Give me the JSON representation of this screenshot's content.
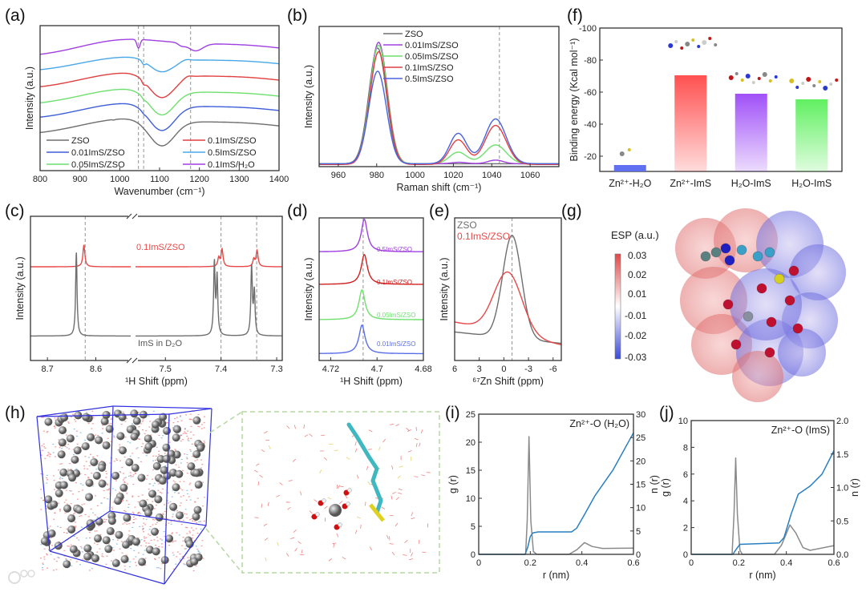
{
  "panel_labels": {
    "a": "(a)",
    "b": "(b)",
    "c": "(c)",
    "d": "(d)",
    "e": "(e)",
    "f": "(f)",
    "g": "(g)",
    "h": "(h)",
    "i": "(i)",
    "j": "(j)"
  },
  "watermark": "大数跨境",
  "esp": {
    "title": "ESP (a.u.)",
    "ticks": [
      "0.03",
      "0.02",
      "0.01",
      "-0.01",
      "-0.02",
      "-0.03"
    ],
    "colors": [
      "#e04848",
      "#ffffff",
      "#3a4ad8"
    ]
  },
  "chart_data": [
    {
      "id": "a",
      "type": "line",
      "xlabel": "Wavenumber (cm⁻¹)",
      "ylabel": "Intensity (a.u.)",
      "xlim": [
        800,
        1400
      ],
      "ylim": [
        -0.43,
        5.43
      ],
      "xticks": [
        800,
        900,
        1000,
        1100,
        1200,
        1300,
        1400
      ],
      "vlines": [
        1047,
        1060,
        1178
      ],
      "grid": false,
      "legend": "bottom",
      "series": [
        {
          "name": "ZSO",
          "color": "#6e6e6e",
          "baseline": 1.0,
          "peaks": [
            [
              1000,
              0.55,
              110,
              "g"
            ],
            [
              1280,
              0.5,
              160,
              "g"
            ],
            [
              1105,
              -1.05,
              32,
              "g"
            ],
            [
              985,
              -0.02,
              3,
              "g"
            ]
          ]
        },
        {
          "name": "0.01ImS/ZSO",
          "color": "#3f5fd8",
          "baseline": 1.62,
          "peaks": [
            [
              1000,
              0.55,
              110,
              "g"
            ],
            [
              1280,
              0.5,
              160,
              "g"
            ],
            [
              1105,
              -1.05,
              32,
              "g"
            ],
            [
              1060,
              -0.04,
              4,
              "g"
            ]
          ]
        },
        {
          "name": "0.05ImS/ZSO",
          "color": "#6fe06f",
          "baseline": 2.2,
          "peaks": [
            [
              1000,
              0.55,
              110,
              "g"
            ],
            [
              1280,
              0.5,
              160,
              "g"
            ],
            [
              1105,
              -1.0,
              32,
              "g"
            ],
            [
              1060,
              -0.06,
              4,
              "g"
            ]
          ]
        },
        {
          "name": "0.1ImS/ZSO",
          "color": "#e04040",
          "baseline": 2.85,
          "peaks": [
            [
              1000,
              0.55,
              110,
              "g"
            ],
            [
              1280,
              0.5,
              160,
              "g"
            ],
            [
              1105,
              -0.95,
              32,
              "g"
            ],
            [
              1060,
              -0.12,
              4,
              "g"
            ],
            [
              1170,
              0.08,
              10,
              "g"
            ]
          ]
        },
        {
          "name": "0.5ImS/ZSO",
          "color": "#4aa8e8",
          "baseline": 3.55,
          "peaks": [
            [
              1000,
              0.5,
              110,
              "g"
            ],
            [
              1280,
              0.45,
              160,
              "g"
            ],
            [
              1105,
              -0.55,
              30,
              "g"
            ],
            [
              1060,
              -0.12,
              4,
              "g"
            ],
            [
              1165,
              0.06,
              10,
              "g"
            ]
          ]
        },
        {
          "name": "0.1ImS/H₂O",
          "color": "#a040e0",
          "baseline": 4.15,
          "peaks": [
            [
              1000,
              0.6,
              110,
              "g"
            ],
            [
              1280,
              0.5,
              160,
              "g"
            ],
            [
              1047,
              -0.35,
              4,
              "g"
            ],
            [
              1190,
              -0.3,
              18,
              "g"
            ],
            [
              1155,
              -0.1,
              8,
              "g"
            ]
          ]
        }
      ]
    },
    {
      "id": "b",
      "type": "line",
      "xlabel": "Raman shift (cm⁻¹)",
      "ylabel": "Intensity (a.u.)",
      "xlim": [
        950,
        1075
      ],
      "ylim": [
        0,
        0.97
      ],
      "xticks": [
        960,
        980,
        1000,
        1020,
        1040,
        1060
      ],
      "vlines": [
        1044
      ],
      "grid": false,
      "legend": "top-center",
      "series": [
        {
          "name": "ZSO",
          "color": "#6e6e6e",
          "baseline": 0.02,
          "peaks": [
            [
              980.5,
              0.8,
              4.6,
              "g"
            ]
          ]
        },
        {
          "name": "0.01ImS/ZSO",
          "color": "#a040e0",
          "baseline": 0.02,
          "peaks": [
            [
              981,
              0.84,
              4.6,
              "g"
            ],
            [
              1023,
              0.01,
              4,
              "g"
            ],
            [
              1042,
              0.025,
              4,
              "g"
            ]
          ]
        },
        {
          "name": "0.05ImS/ZSO",
          "color": "#6fe06f",
          "baseline": 0.02,
          "peaks": [
            [
              981,
              0.82,
              4.6,
              "g"
            ],
            [
              1022.5,
              0.08,
              4.5,
              "g"
            ],
            [
              1042,
              0.13,
              5.5,
              "g"
            ]
          ]
        },
        {
          "name": "0.1ImS/ZSO",
          "color": "#e04040",
          "baseline": 0.015,
          "peaks": [
            [
              981,
              0.78,
              4.6,
              "g"
            ],
            [
              1022.5,
              0.17,
              4.5,
              "g"
            ],
            [
              1042,
              0.27,
              5.5,
              "g"
            ]
          ]
        },
        {
          "name": "0.5ImS/ZSO",
          "color": "#4a64e0",
          "baseline": 0.02,
          "peaks": [
            [
              980.5,
              0.64,
              4.6,
              "g"
            ],
            [
              1022.5,
              0.21,
              4.5,
              "g"
            ],
            [
              1042,
              0.31,
              5.5,
              "g"
            ]
          ]
        }
      ]
    },
    {
      "id": "f",
      "type": "bar",
      "xlabel": "",
      "ylabel": "Binding energy (Kcal mol⁻¹)",
      "ylim": [
        -10.5,
        -100
      ],
      "yticks": [
        -100,
        -80,
        -60,
        -40,
        -20
      ],
      "categories": [
        "Zn²⁺-H₂O",
        "Zn²⁺-ImS",
        "H₂O-ImS",
        "H₂O-ImS"
      ],
      "values": [
        -14.5,
        -70.5,
        -59,
        -55.5
      ],
      "colors": [
        "#6070f0",
        "#ff5050",
        "#a050f8",
        "#60f060"
      ]
    },
    {
      "id": "c",
      "type": "line",
      "xlabel": "¹H Shift (ppm)",
      "ylabel": "Intensity (a.u.)",
      "broken_axis": true,
      "segments": [
        {
          "xlim": [
            8.735,
            8.523
          ],
          "xticks": [
            8.7,
            8.6
          ]
        },
        {
          "xlim": [
            7.558,
            7.29
          ],
          "xticks": [
            7.5,
            7.4,
            7.3
          ]
        }
      ],
      "ylim": [
        0,
        1
      ],
      "vlines": [
        8.622,
        7.4,
        7.336
      ],
      "series": [
        {
          "name": "0.1ImS/ZSO",
          "color": "#e84848",
          "baseline": 0.65,
          "peaks": [
            [
              8.622,
              0.15,
              0.0025,
              "l"
            ],
            [
              7.4,
              0.12,
              0.0022,
              "l"
            ],
            [
              7.406,
              0.06,
              0.002,
              "l"
            ],
            [
              7.336,
              0.11,
              0.0022,
              "l"
            ],
            [
              7.342,
              0.05,
              0.002,
              "l"
            ]
          ]
        },
        {
          "name": "ImS in D₂O",
          "color": "#6e6e6e",
          "baseline": 0.17,
          "peaks": [
            [
              8.638,
              0.58,
              0.0018,
              "l"
            ],
            [
              7.414,
              0.5,
              0.0016,
              "l"
            ],
            [
              7.409,
              0.4,
              0.0016,
              "l"
            ],
            [
              7.346,
              0.48,
              0.0016,
              "l"
            ],
            [
              7.341,
              0.3,
              0.0016,
              "l"
            ]
          ]
        }
      ]
    },
    {
      "id": "d",
      "type": "line",
      "xlabel": "¹H Shift (ppm)",
      "ylabel": "Intensity (a.u.)",
      "xlim": [
        4.725,
        4.68
      ],
      "ylim": [
        0,
        1.05
      ],
      "xticks": [
        4.72,
        4.7,
        4.68
      ],
      "vlines": [
        4.706
      ],
      "series": [
        {
          "name": "0.01ImS/ZSO",
          "color": "#5a6ee8",
          "baseline": 0.05,
          "peaks": [
            [
              4.7065,
              0.21,
              0.0016,
              "l"
            ]
          ]
        },
        {
          "name": "0.05ImS/ZSO",
          "color": "#6fe06f",
          "baseline": 0.3,
          "peaks": [
            [
              4.7065,
              0.22,
              0.0016,
              "l"
            ]
          ]
        },
        {
          "name": "0.1ImS/ZSO",
          "color": "#d02020",
          "baseline": 0.56,
          "peaks": [
            [
              4.7055,
              0.22,
              0.0016,
              "l"
            ]
          ]
        },
        {
          "name": "0.5ImS/ZSO",
          "color": "#a040e0",
          "baseline": 0.8,
          "peaks": [
            [
              4.7055,
              0.24,
              0.0016,
              "l"
            ]
          ]
        }
      ]
    },
    {
      "id": "e",
      "type": "line",
      "xlabel": "⁶⁷Zn Shift (ppm)",
      "ylabel": "Intensity (a.u.)",
      "xlim": [
        6,
        -7
      ],
      "ylim": [
        0,
        1
      ],
      "xticks": [
        6,
        3,
        0,
        -3,
        -6
      ],
      "vlines": [
        -1
      ],
      "legend": "top-left",
      "series": [
        {
          "name": "ZSO",
          "color": "#6e6e6e",
          "baseline": [
            0.2,
            0.12
          ],
          "peaks": [
            [
              -1,
              0.72,
              1.15,
              "g"
            ]
          ]
        },
        {
          "name": "0.1ImS/ZSO",
          "color": "#e84848",
          "baseline": [
            0.27,
            0.11
          ],
          "peaks": [
            [
              -0.5,
              0.43,
              1.7,
              "g"
            ]
          ]
        }
      ]
    },
    {
      "id": "i",
      "type": "line",
      "xlabel": "r (nm)",
      "ylabel": "g (r)",
      "ylabel_right": "n (r)",
      "title": "Zn²⁺-O (H₂O)",
      "xlim": [
        0,
        0.6
      ],
      "ylim": [
        0,
        25
      ],
      "ylim_right": [
        0,
        30
      ],
      "xticks": [
        0.0,
        0.2,
        0.4,
        0.6
      ],
      "yticks": [
        0,
        5,
        10,
        15,
        20,
        25
      ],
      "yticks_right": [
        0,
        5,
        10,
        15,
        20,
        25,
        30
      ],
      "series": [
        {
          "name": "g(r)",
          "axis": "left",
          "color": "#8a8a8a",
          "points": [
            [
              0,
              0
            ],
            [
              0.182,
              0
            ],
            [
              0.188,
              6
            ],
            [
              0.195,
              21
            ],
            [
              0.202,
              6
            ],
            [
              0.212,
              0.5
            ],
            [
              0.225,
              0
            ],
            [
              0.35,
              0
            ],
            [
              0.38,
              0.8
            ],
            [
              0.41,
              2.1
            ],
            [
              0.44,
              1.4
            ],
            [
              0.48,
              1.05
            ],
            [
              0.6,
              1.1
            ]
          ]
        },
        {
          "name": "n(r)",
          "axis": "right",
          "color": "#2a7fc0",
          "points": [
            [
              0,
              0
            ],
            [
              0.18,
              0
            ],
            [
              0.19,
              1.5
            ],
            [
              0.2,
              3.8
            ],
            [
              0.21,
              4.6
            ],
            [
              0.23,
              4.8
            ],
            [
              0.36,
              4.8
            ],
            [
              0.38,
              5.6
            ],
            [
              0.41,
              8.5
            ],
            [
              0.45,
              12.5
            ],
            [
              0.52,
              18
            ],
            [
              0.6,
              26
            ]
          ]
        }
      ]
    },
    {
      "id": "j",
      "type": "line",
      "xlabel": "r (nm)",
      "ylabel": "g (r)",
      "ylabel_right": "n (r)",
      "title": "Zn²⁺-O (ImS)",
      "xlim": [
        0,
        0.6
      ],
      "ylim": [
        0,
        10
      ],
      "ylim_right": [
        0,
        2
      ],
      "xticks": [
        0.0,
        0.2,
        0.4,
        0.6
      ],
      "yticks": [
        0,
        2,
        4,
        6,
        8,
        10
      ],
      "yticks_right": [
        "0.0",
        "0.5",
        "1.0",
        "1.5",
        "2.0"
      ],
      "series": [
        {
          "name": "g(r)",
          "axis": "left",
          "color": "#8a8a8a",
          "points": [
            [
              0,
              0
            ],
            [
              0.172,
              0
            ],
            [
              0.18,
              3
            ],
            [
              0.187,
              7.2
            ],
            [
              0.194,
              3
            ],
            [
              0.205,
              0.3
            ],
            [
              0.215,
              0
            ],
            [
              0.35,
              0
            ],
            [
              0.38,
              0.7
            ],
            [
              0.415,
              2.2
            ],
            [
              0.44,
              1.6
            ],
            [
              0.47,
              0.5
            ],
            [
              0.5,
              0.3
            ],
            [
              0.6,
              0.65
            ]
          ]
        },
        {
          "name": "n(r)",
          "axis": "right",
          "color": "#2a7fc0",
          "points": [
            [
              0,
              0
            ],
            [
              0.175,
              0
            ],
            [
              0.19,
              0.08
            ],
            [
              0.205,
              0.15
            ],
            [
              0.37,
              0.17
            ],
            [
              0.39,
              0.25
            ],
            [
              0.42,
              0.6
            ],
            [
              0.45,
              0.9
            ],
            [
              0.5,
              1.02
            ],
            [
              0.55,
              1.2
            ],
            [
              0.6,
              1.55
            ]
          ]
        }
      ]
    }
  ]
}
